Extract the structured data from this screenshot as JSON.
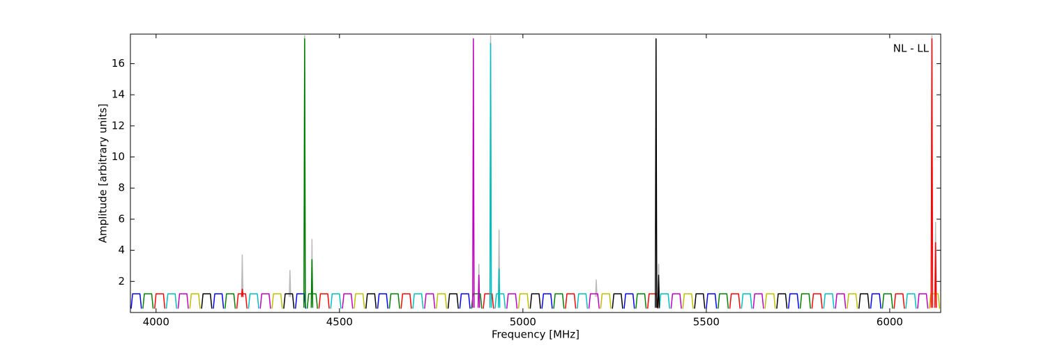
{
  "chart_data": {
    "type": "line",
    "annotation": "NL - LL",
    "xlabel": "Frequency [MHz]",
    "ylabel": "Amplitude [arbitrary units]",
    "xlim": [
      3930,
      6139
    ],
    "xticks": [
      4000,
      4500,
      5000,
      5500,
      6000
    ],
    "ylim": [
      0,
      17.9
    ],
    "yticks": [
      2,
      4,
      6,
      8,
      10,
      12,
      14,
      16
    ],
    "grid": false,
    "series": [
      {
        "color": "#bbbbbb",
        "x": [
          4233,
          4235,
          4237,
          null,
          4363,
          4365,
          4367,
          null,
          4403,
          4405,
          4407,
          null,
          4423,
          4425,
          4427,
          null,
          4878,
          4880,
          4882,
          null,
          4910,
          4912,
          4914,
          null,
          4933,
          4935,
          4937,
          null,
          5198,
          5200,
          5202,
          null,
          5368,
          5370,
          5372,
          null,
          6113,
          6115,
          6117,
          null,
          6123,
          6125,
          6127
        ],
        "values": [
          1,
          3.7,
          1,
          null,
          1,
          2.7,
          1,
          null,
          0.5,
          17.8,
          0.5,
          null,
          0.5,
          4.7,
          0.5,
          null,
          0.5,
          3.1,
          0.5,
          null,
          0.5,
          17.8,
          0.5,
          null,
          0.5,
          5.3,
          0.5,
          null,
          1,
          2.1,
          1,
          null,
          0.5,
          3.1,
          0.5,
          null,
          0.5,
          17.8,
          0.5,
          null,
          0.5,
          5.8,
          0.5
        ]
      },
      {
        "color": "#0000ff",
        "x": [
          3932,
          3936,
          3956,
          3960,
          null,
          4156,
          4160,
          4180,
          4184,
          null,
          4380,
          4384,
          4404,
          4408,
          null,
          4604,
          4608,
          4628,
          4632,
          null,
          4828,
          4832,
          4852,
          4856,
          null,
          5052,
          5056,
          5076,
          5080,
          null,
          5276,
          5280,
          5300,
          5304,
          null,
          5500,
          5504,
          5524,
          5528,
          null,
          5724,
          5728,
          5748,
          5752,
          null,
          5948,
          5952,
          5972,
          5976
        ],
        "values": [
          0.25,
          1.2,
          1.2,
          0.25,
          null,
          0.25,
          1.2,
          1.2,
          0.25,
          null,
          0.25,
          1.2,
          1.2,
          0.25,
          null,
          0.25,
          1.2,
          1.2,
          0.25,
          null,
          0.25,
          1.2,
          1.2,
          0.25,
          null,
          0.25,
          1.2,
          1.2,
          0.25,
          null,
          0.25,
          1.2,
          1.2,
          0.25,
          null,
          0.25,
          1.2,
          1.2,
          0.25,
          null,
          0.25,
          1.2,
          1.2,
          0.25,
          null,
          0.25,
          1.2,
          1.2,
          0.25
        ]
      },
      {
        "color": "#008000",
        "x": [
          3964,
          3968,
          3988,
          3992,
          null,
          4188,
          4192,
          4212,
          4216,
          null,
          4412,
          4416,
          4436,
          4440,
          null,
          4636,
          4640,
          4660,
          4664,
          null,
          4860,
          4864,
          4884,
          4888,
          null,
          5084,
          5088,
          5108,
          5112,
          null,
          5308,
          5312,
          5332,
          5336,
          null,
          5532,
          5536,
          5556,
          5560,
          null,
          5756,
          5760,
          5780,
          5784,
          null,
          5980,
          5984,
          6004,
          6008
        ],
        "values": [
          0.25,
          1.2,
          1.2,
          0.25,
          null,
          0.25,
          1.2,
          1.2,
          0.25,
          null,
          0.25,
          1.2,
          1.2,
          0.25,
          null,
          0.25,
          1.2,
          1.2,
          0.25,
          null,
          0.25,
          1.2,
          1.2,
          0.25,
          null,
          0.25,
          1.2,
          1.2,
          0.25,
          null,
          0.25,
          1.2,
          1.2,
          0.25,
          null,
          0.25,
          1.2,
          1.2,
          0.25,
          null,
          0.25,
          1.2,
          1.2,
          0.25,
          null,
          0.25,
          1.2,
          1.2,
          0.25
        ]
      },
      {
        "color": "#ff0000",
        "x": [
          3996,
          4000,
          4020,
          4024,
          null,
          4220,
          4224,
          4244,
          4248,
          null,
          4444,
          4448,
          4468,
          4472,
          null,
          4668,
          4672,
          4692,
          4696,
          null,
          4892,
          4896,
          4916,
          4920,
          null,
          5116,
          5120,
          5140,
          5144,
          null,
          5340,
          5344,
          5364,
          5368,
          null,
          5564,
          5568,
          5588,
          5592,
          null,
          5788,
          5792,
          5812,
          5816,
          null,
          6012,
          6016,
          6036,
          6040
        ],
        "values": [
          0.25,
          1.2,
          1.2,
          0.25,
          null,
          0.25,
          1.2,
          1.2,
          0.25,
          null,
          0.25,
          1.2,
          1.2,
          0.25,
          null,
          0.25,
          1.2,
          1.2,
          0.25,
          null,
          0.25,
          1.2,
          1.2,
          0.25,
          null,
          0.25,
          1.2,
          1.2,
          0.25,
          null,
          0.25,
          1.2,
          1.2,
          0.25,
          null,
          0.25,
          1.2,
          1.2,
          0.25,
          null,
          0.25,
          1.2,
          1.2,
          0.25,
          null,
          0.25,
          1.2,
          1.2,
          0.25
        ]
      },
      {
        "color": "#00bfbf",
        "x": [
          4028,
          4032,
          4052,
          4056,
          null,
          4252,
          4256,
          4276,
          4280,
          null,
          4476,
          4480,
          4500,
          4504,
          null,
          4700,
          4704,
          4724,
          4728,
          null,
          4924,
          4928,
          4948,
          4952,
          null,
          5148,
          5152,
          5172,
          5176,
          null,
          5372,
          5376,
          5396,
          5400,
          null,
          5596,
          5600,
          5620,
          5624,
          null,
          5820,
          5824,
          5844,
          5848,
          null,
          6044,
          6048,
          6068,
          6072
        ],
        "values": [
          0.25,
          1.2,
          1.2,
          0.25,
          null,
          0.25,
          1.2,
          1.2,
          0.25,
          null,
          0.25,
          1.2,
          1.2,
          0.25,
          null,
          0.25,
          1.2,
          1.2,
          0.25,
          null,
          0.25,
          1.2,
          1.2,
          0.25,
          null,
          0.25,
          1.2,
          1.2,
          0.25,
          null,
          0.25,
          1.2,
          1.2,
          0.25,
          null,
          0.25,
          1.2,
          1.2,
          0.25,
          null,
          0.25,
          1.2,
          1.2,
          0.25,
          null,
          0.25,
          1.2,
          1.2,
          0.25
        ]
      },
      {
        "color": "#bf00bf",
        "x": [
          4060,
          4064,
          4084,
          4088,
          null,
          4284,
          4288,
          4308,
          4312,
          null,
          4508,
          4512,
          4532,
          4536,
          null,
          4732,
          4736,
          4756,
          4760,
          null,
          4956,
          4960,
          4980,
          4984,
          null,
          5180,
          5184,
          5204,
          5208,
          null,
          5404,
          5408,
          5428,
          5432,
          null,
          5628,
          5632,
          5652,
          5656,
          null,
          5852,
          5856,
          5876,
          5880,
          null,
          6076,
          6080,
          6100,
          6104
        ],
        "values": [
          0.25,
          1.2,
          1.2,
          0.25,
          null,
          0.25,
          1.2,
          1.2,
          0.25,
          null,
          0.25,
          1.2,
          1.2,
          0.25,
          null,
          0.25,
          1.2,
          1.2,
          0.25,
          null,
          0.25,
          1.2,
          1.2,
          0.25,
          null,
          0.25,
          1.2,
          1.2,
          0.25,
          null,
          0.25,
          1.2,
          1.2,
          0.25,
          null,
          0.25,
          1.2,
          1.2,
          0.25,
          null,
          0.25,
          1.2,
          1.2,
          0.25,
          null,
          0.25,
          1.2,
          1.2,
          0.25
        ]
      },
      {
        "color": "#bfbf00",
        "x": [
          4092,
          4096,
          4116,
          4120,
          null,
          4316,
          4320,
          4340,
          4344,
          null,
          4540,
          4544,
          4564,
          4568,
          null,
          4764,
          4768,
          4788,
          4792,
          null,
          4988,
          4992,
          5012,
          5016,
          null,
          5212,
          5216,
          5236,
          5240,
          null,
          5436,
          5440,
          5460,
          5464,
          null,
          5660,
          5664,
          5684,
          5688,
          null,
          5884,
          5888,
          5908,
          5912,
          null,
          6108,
          6112,
          6132,
          6136
        ],
        "values": [
          0.25,
          1.2,
          1.2,
          0.25,
          null,
          0.25,
          1.2,
          1.2,
          0.25,
          null,
          0.25,
          1.2,
          1.2,
          0.25,
          null,
          0.25,
          1.2,
          1.2,
          0.25,
          null,
          0.25,
          1.2,
          1.2,
          0.25,
          null,
          0.25,
          1.2,
          1.2,
          0.25,
          null,
          0.25,
          1.2,
          1.2,
          0.25,
          null,
          0.25,
          1.2,
          1.2,
          0.25,
          null,
          0.25,
          1.2,
          1.2,
          0.25,
          null,
          0.25,
          1.2,
          1.2,
          0.25
        ]
      },
      {
        "color": "#000000",
        "x": [
          4124,
          4128,
          4148,
          4152,
          null,
          4348,
          4352,
          4372,
          4376,
          null,
          4572,
          4576,
          4596,
          4600,
          null,
          4796,
          4800,
          4820,
          4824,
          null,
          5020,
          5024,
          5044,
          5048,
          null,
          5244,
          5248,
          5268,
          5272,
          null,
          5468,
          5472,
          5492,
          5496,
          null,
          5692,
          5696,
          5716,
          5720,
          null,
          5916,
          5920,
          5940,
          5944
        ],
        "values": [
          0.25,
          1.2,
          1.2,
          0.25,
          null,
          0.25,
          1.2,
          1.2,
          0.25,
          null,
          0.25,
          1.2,
          1.2,
          0.25,
          null,
          0.25,
          1.2,
          1.2,
          0.25,
          null,
          0.25,
          1.2,
          1.2,
          0.25,
          null,
          0.25,
          1.2,
          1.2,
          0.25,
          null,
          0.25,
          1.2,
          1.2,
          0.25,
          null,
          0.25,
          1.2,
          1.2,
          0.25,
          null,
          0.25,
          1.2,
          1.2,
          0.25
        ]
      },
      {
        "color": "#008000",
        "x": [
          4403,
          4405,
          4407,
          null,
          4423,
          4425,
          4427
        ],
        "values": [
          0.3,
          17.6,
          0.3,
          null,
          0.3,
          3.4,
          0.3
        ]
      },
      {
        "color": "#bf00bf",
        "x": [
          4863,
          4865,
          4867,
          null,
          4878,
          4880,
          4882
        ],
        "values": [
          0.3,
          17.6,
          0.3,
          null,
          0.3,
          2.4,
          0.3
        ]
      },
      {
        "color": "#00bfbf",
        "x": [
          4910,
          4912,
          4914,
          null,
          4933,
          4935,
          4937
        ],
        "values": [
          0.3,
          17.3,
          0.3,
          null,
          0.3,
          2.8,
          0.3
        ]
      },
      {
        "color": "#000000",
        "x": [
          5361,
          5363,
          5365,
          null,
          5368,
          5370,
          5372
        ],
        "values": [
          0.3,
          17.6,
          0.3,
          null,
          0.3,
          2.4,
          0.3
        ]
      },
      {
        "color": "#ff0000",
        "x": [
          4233,
          4235,
          4237,
          null,
          6113,
          6115,
          6117,
          null,
          6123,
          6125,
          6127
        ],
        "values": [
          1,
          1.5,
          1,
          null,
          0.3,
          17.6,
          0.3,
          null,
          0.3,
          4.5,
          0.3
        ]
      }
    ]
  }
}
